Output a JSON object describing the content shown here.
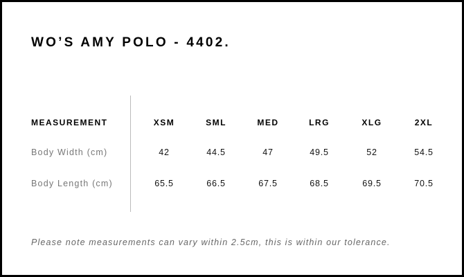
{
  "title": "WO’S AMY POLO - 4402.",
  "table": {
    "header": "MEASUREMENT",
    "sizes": [
      "XSM",
      "SML",
      "MED",
      "LRG",
      "XLG",
      "2XL"
    ],
    "rows": [
      {
        "label": "Body Width (cm)",
        "values": [
          "42",
          "44.5",
          "47",
          "49.5",
          "52",
          "54.5"
        ]
      },
      {
        "label": "Body Length (cm)",
        "values": [
          "65.5",
          "66.5",
          "67.5",
          "68.5",
          "69.5",
          "70.5"
        ]
      }
    ]
  },
  "note": "Please note measurements can vary within 2.5cm, this is within our tolerance."
}
